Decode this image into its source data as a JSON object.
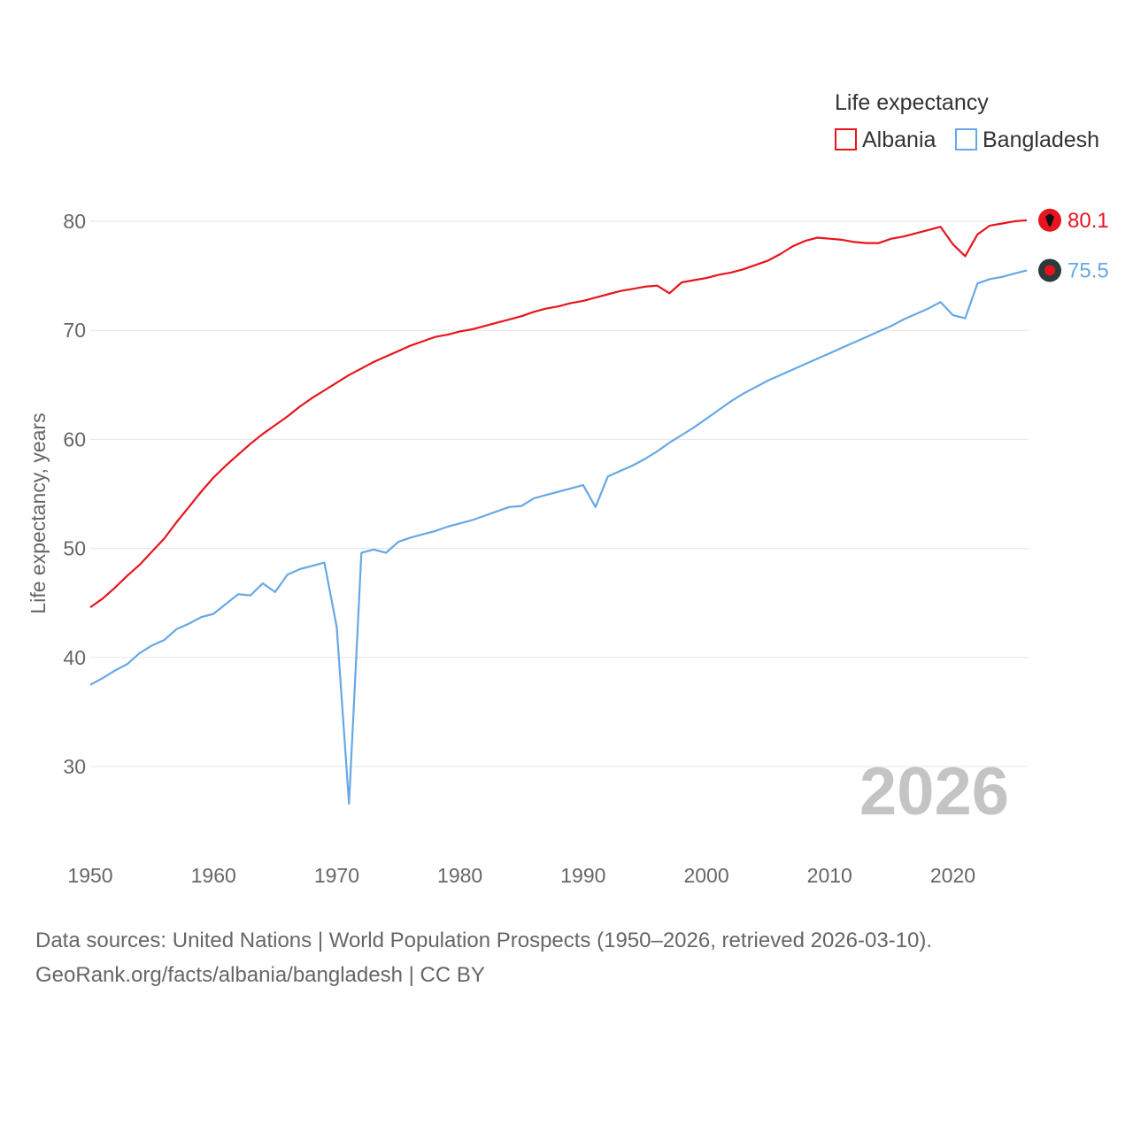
{
  "chart_data": {
    "type": "line",
    "ylabel": "Life expectancy, years",
    "xlim": [
      1950,
      2026
    ],
    "ylim": [
      24,
      82
    ],
    "y_ticks": [
      30,
      40,
      50,
      60,
      70,
      80
    ],
    "x_ticks": [
      1950,
      1960,
      1970,
      1980,
      1990,
      2000,
      2010,
      2020
    ],
    "grid": true,
    "legend": {
      "title": "Life expectancy",
      "position": "top-right"
    },
    "year_watermark": "2026",
    "series": [
      {
        "name": "Albania",
        "color": "#e8141c",
        "end_label": "80.1",
        "x": [
          1950,
          1951,
          1952,
          1953,
          1954,
          1955,
          1956,
          1957,
          1958,
          1959,
          1960,
          1961,
          1962,
          1963,
          1964,
          1965,
          1966,
          1967,
          1968,
          1969,
          1970,
          1971,
          1972,
          1973,
          1974,
          1975,
          1976,
          1977,
          1978,
          1979,
          1980,
          1981,
          1982,
          1983,
          1984,
          1985,
          1986,
          1987,
          1988,
          1989,
          1990,
          1991,
          1992,
          1993,
          1994,
          1995,
          1996,
          1997,
          1998,
          1999,
          2000,
          2001,
          2002,
          2003,
          2004,
          2005,
          2006,
          2007,
          2008,
          2009,
          2010,
          2011,
          2012,
          2013,
          2014,
          2015,
          2016,
          2017,
          2018,
          2019,
          2020,
          2021,
          2022,
          2023,
          2024,
          2025,
          2026
        ],
        "values": [
          44.6,
          45.4,
          46.4,
          47.5,
          48.5,
          49.7,
          50.9,
          52.4,
          53.8,
          55.2,
          56.5,
          57.6,
          58.6,
          59.6,
          60.5,
          61.3,
          62.1,
          63.0,
          63.8,
          64.5,
          65.2,
          65.9,
          66.5,
          67.1,
          67.6,
          68.1,
          68.6,
          69.0,
          69.4,
          69.6,
          69.9,
          70.1,
          70.4,
          70.7,
          71.0,
          71.3,
          71.7,
          72.0,
          72.2,
          72.5,
          72.7,
          73.0,
          73.3,
          73.6,
          73.8,
          74.0,
          74.1,
          73.4,
          74.4,
          74.6,
          74.8,
          75.1,
          75.3,
          75.6,
          76.0,
          76.4,
          77.0,
          77.7,
          78.2,
          78.5,
          78.4,
          78.3,
          78.1,
          78.0,
          78.0,
          78.4,
          78.6,
          78.9,
          79.2,
          79.5,
          77.9,
          76.8,
          78.8,
          79.6,
          79.8,
          80.0,
          80.1
        ]
      },
      {
        "name": "Bangladesh",
        "color": "#66a8e6",
        "end_label": "75.5",
        "x": [
          1950,
          1951,
          1952,
          1953,
          1954,
          1955,
          1956,
          1957,
          1958,
          1959,
          1960,
          1961,
          1962,
          1963,
          1964,
          1965,
          1966,
          1967,
          1968,
          1969,
          1970,
          1971,
          1972,
          1973,
          1974,
          1975,
          1976,
          1977,
          1978,
          1979,
          1980,
          1981,
          1982,
          1983,
          1984,
          1985,
          1986,
          1987,
          1988,
          1989,
          1990,
          1991,
          1992,
          1993,
          1994,
          1995,
          1996,
          1997,
          1998,
          1999,
          2000,
          2001,
          2002,
          2003,
          2004,
          2005,
          2006,
          2007,
          2008,
          2009,
          2010,
          2011,
          2012,
          2013,
          2014,
          2015,
          2016,
          2017,
          2018,
          2019,
          2020,
          2021,
          2022,
          2023,
          2024,
          2025,
          2026
        ],
        "values": [
          37.5,
          38.1,
          38.8,
          39.4,
          40.4,
          41.1,
          41.6,
          42.6,
          43.1,
          43.7,
          44.0,
          44.9,
          45.8,
          45.7,
          46.8,
          46.0,
          47.6,
          48.1,
          48.4,
          48.7,
          42.8,
          26.6,
          49.6,
          49.9,
          49.6,
          50.6,
          51.0,
          51.3,
          51.6,
          52.0,
          52.3,
          52.6,
          53.0,
          53.4,
          53.8,
          53.9,
          54.6,
          54.9,
          55.2,
          55.5,
          55.8,
          53.8,
          56.6,
          57.1,
          57.6,
          58.2,
          58.9,
          59.7,
          60.4,
          61.1,
          61.9,
          62.7,
          63.5,
          64.2,
          64.8,
          65.4,
          65.9,
          66.4,
          66.9,
          67.4,
          67.9,
          68.4,
          68.9,
          69.4,
          69.9,
          70.4,
          71.0,
          71.5,
          72.0,
          72.6,
          71.4,
          71.1,
          74.3,
          74.7,
          74.9,
          75.2,
          75.5
        ]
      }
    ]
  },
  "footer": {
    "source_line": "Data sources: United Nations | World Population Prospects (1950–2026, retrieved 2026-03-10).",
    "url_line": "GeoRank.org/facts/albania/bangladesh | CC BY"
  }
}
